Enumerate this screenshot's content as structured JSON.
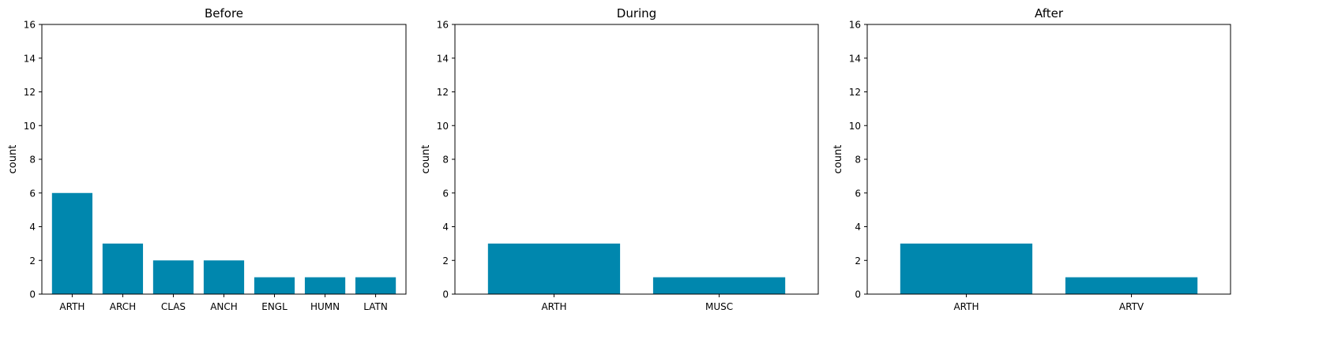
{
  "chart_data": [
    {
      "type": "bar",
      "title": "Before",
      "xlabel": "",
      "ylabel": "count",
      "ylim": [
        0,
        16
      ],
      "yticks": [
        "0",
        "2",
        "4",
        "6",
        "8",
        "10",
        "12",
        "14",
        "16"
      ],
      "categories": [
        "ARTH",
        "ARCH",
        "CLAS",
        "ANCH",
        "ENGL",
        "HUMN",
        "LATN"
      ],
      "values": [
        6,
        3,
        2,
        2,
        1,
        1,
        1
      ],
      "color": "#0087ae",
      "grid": false
    },
    {
      "type": "bar",
      "title": "During",
      "xlabel": "",
      "ylabel": "count",
      "ylim": [
        0,
        16
      ],
      "yticks": [
        "0",
        "2",
        "4",
        "6",
        "8",
        "10",
        "12",
        "14",
        "16"
      ],
      "categories": [
        "ARTH",
        "MUSC"
      ],
      "values": [
        3,
        1
      ],
      "color": "#0087ae",
      "grid": false
    },
    {
      "type": "bar",
      "title": "After",
      "xlabel": "",
      "ylabel": "count",
      "ylim": [
        0,
        16
      ],
      "yticks": [
        "0",
        "2",
        "4",
        "6",
        "8",
        "10",
        "12",
        "14",
        "16"
      ],
      "categories": [
        "ARTH",
        "ARTV"
      ],
      "values": [
        3,
        1
      ],
      "color": "#0087ae",
      "grid": false
    }
  ]
}
